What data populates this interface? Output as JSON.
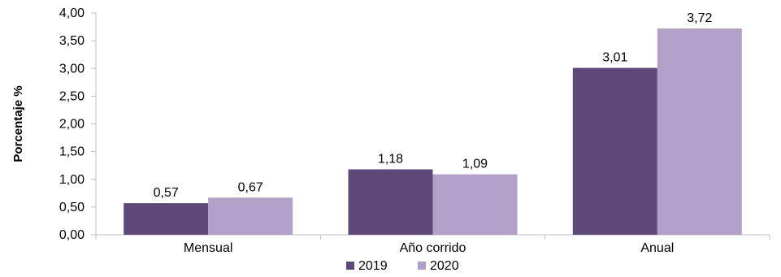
{
  "chart_data": {
    "type": "bar",
    "title": "",
    "xlabel": "",
    "ylabel": "Porcentaje %",
    "categories": [
      "Mensual",
      "Año corrido",
      "Anual"
    ],
    "series": [
      {
        "name": "2019",
        "values": [
          0.57,
          1.18,
          3.01
        ],
        "labels": [
          "0,57",
          "1,18",
          "3,01"
        ],
        "color": "#5e4878"
      },
      {
        "name": "2020",
        "values": [
          0.67,
          1.09,
          3.72
        ],
        "labels": [
          "0,67",
          "1,09",
          "3,72"
        ],
        "color": "#b2a0c8"
      }
    ],
    "ylim": [
      0,
      4
    ],
    "yticks": [
      0,
      0.5,
      1,
      1.5,
      2,
      2.5,
      3,
      3.5,
      4
    ],
    "ytick_labels": [
      "0,00",
      "0,50",
      "1,00",
      "1,50",
      "2,00",
      "2,50",
      "3,00",
      "3,50",
      "4,00"
    ],
    "grid": false,
    "legend_position": "bottom"
  }
}
